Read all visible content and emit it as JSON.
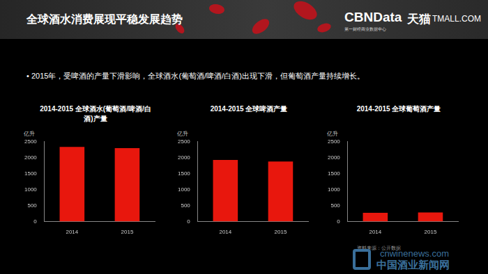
{
  "header": {
    "title": "全球酒水消费展现平稳发展趋势",
    "logo": "CBNData",
    "logo_subtitle": "第一财经商业数据中心",
    "partner": "天猫",
    "partner_site": "TMALL.COM"
  },
  "bullet": "•  2015年，受啤酒的产量下滑影响，全球酒水(葡萄酒/啤酒/白酒)出现下滑，但葡萄酒产量持续增长。",
  "chart_data": [
    {
      "type": "bar",
      "title": "2014-2015 全球酒水(葡萄酒/啤酒/白酒)产量",
      "y_label": "亿升",
      "categories": [
        "2014",
        "2015"
      ],
      "values": [
        2340,
        2300
      ],
      "color": "#e8170d",
      "ylim": [
        0,
        2500
      ],
      "yticks": [
        0,
        500,
        1000,
        1500,
        2000,
        2500
      ],
      "grid": false
    },
    {
      "type": "bar",
      "title": "2014-2015 全球啤酒产量",
      "y_label": "亿升",
      "categories": [
        "2014",
        "2015"
      ],
      "values": [
        1930,
        1880
      ],
      "color": "#e8170d",
      "ylim": [
        0,
        2500
      ],
      "yticks": [
        0,
        500,
        1000,
        1500,
        2000,
        2500
      ],
      "grid": false
    },
    {
      "type": "bar",
      "title": "2014-2015 全球葡萄酒产量",
      "y_label": "亿升",
      "categories": [
        "2014",
        "2015"
      ],
      "values": [
        270,
        280
      ],
      "color": "#e8170d",
      "ylim": [
        0,
        2500
      ],
      "yticks": [
        0,
        500,
        1000,
        1500,
        2000,
        2500
      ],
      "grid": false
    }
  ],
  "source": "资料来源：公开数据",
  "watermark": {
    "site": "cnwinenews.com",
    "name": "中国酒业新闻网"
  }
}
